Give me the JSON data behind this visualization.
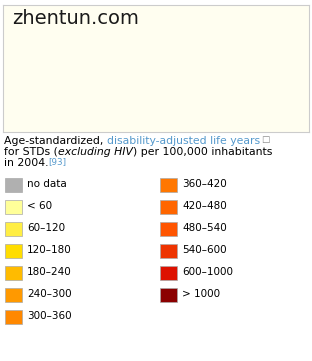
{
  "watermark": "zhentun.com",
  "legend_left": [
    {
      "label": "no data",
      "color": "#b0b0b0"
    },
    {
      "label": "< 60",
      "color": "#ffff99"
    },
    {
      "label": "60–120",
      "color": "#ffee44"
    },
    {
      "label": "120–180",
      "color": "#ffdd00"
    },
    {
      "label": "180–240",
      "color": "#ffbb00"
    },
    {
      "label": "240–300",
      "color": "#ff9900"
    },
    {
      "label": "300–360",
      "color": "#ff8800"
    }
  ],
  "legend_right": [
    {
      "label": "360–420",
      "color": "#ff7700"
    },
    {
      "label": "420–480",
      "color": "#ff6600"
    },
    {
      "label": "480–540",
      "color": "#ff5500"
    },
    {
      "label": "540–600",
      "color": "#ee3300"
    },
    {
      "label": "600–1000",
      "color": "#dd1100"
    },
    {
      "label": "> 1000",
      "color": "#8b0000"
    }
  ],
  "fig_width": 3.12,
  "fig_height": 3.61,
  "dpi": 100,
  "bg_color": "#ffffff",
  "map_border_color": "#cccccc",
  "map_bg": "#fffef0",
  "title_fontsize": 7.8,
  "legend_fontsize": 7.5,
  "watermark_fontsize": 14
}
